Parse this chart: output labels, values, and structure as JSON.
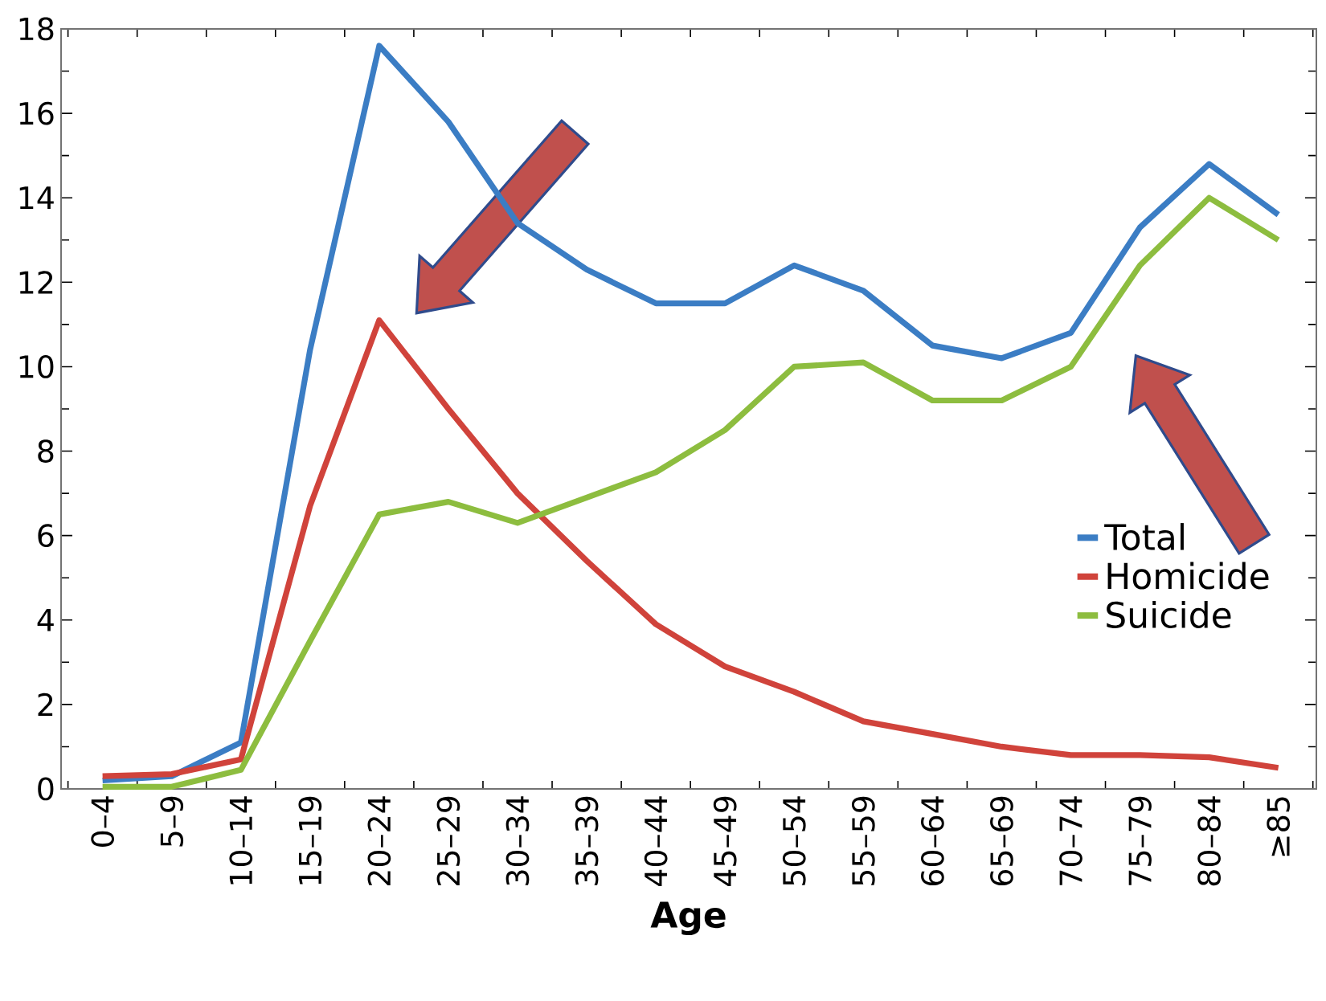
{
  "chart_data": {
    "type": "line",
    "xlabel": "Age",
    "categories": [
      "0–4",
      "5–9",
      "10–14",
      "15–19",
      "20–24",
      "25–29",
      "30–34",
      "35–39",
      "40–44",
      "45–49",
      "50–54",
      "55–59",
      "60–64",
      "65–69",
      "70–74",
      "75–79",
      "80–84",
      "≥85"
    ],
    "series": [
      {
        "name": "Total",
        "color": "#3b7dc4",
        "values": [
          0.2,
          0.3,
          1.1,
          10.4,
          17.6,
          15.8,
          13.4,
          12.3,
          11.5,
          11.5,
          12.4,
          11.8,
          10.5,
          10.2,
          10.8,
          13.3,
          14.8,
          13.6
        ]
      },
      {
        "name": "Homicide",
        "color": "#d0433b",
        "values": [
          0.3,
          0.35,
          0.7,
          6.7,
          11.1,
          9.0,
          7.0,
          5.4,
          3.9,
          2.9,
          2.3,
          1.6,
          1.3,
          1.0,
          0.8,
          0.8,
          0.75,
          0.5
        ]
      },
      {
        "name": "Suicide",
        "color": "#8dbd3f",
        "values": [
          0.05,
          0.05,
          0.45,
          3.5,
          6.5,
          6.8,
          6.3,
          6.9,
          7.5,
          8.5,
          10.0,
          10.1,
          9.2,
          9.2,
          10.0,
          12.4,
          14.0,
          13.0
        ]
      }
    ],
    "ylim": [
      0,
      18
    ],
    "yticks": [
      0,
      2,
      4,
      6,
      8,
      10,
      12,
      14,
      16,
      18
    ],
    "grid": false,
    "legend": "right",
    "marker": "none",
    "line_style": "solid"
  }
}
